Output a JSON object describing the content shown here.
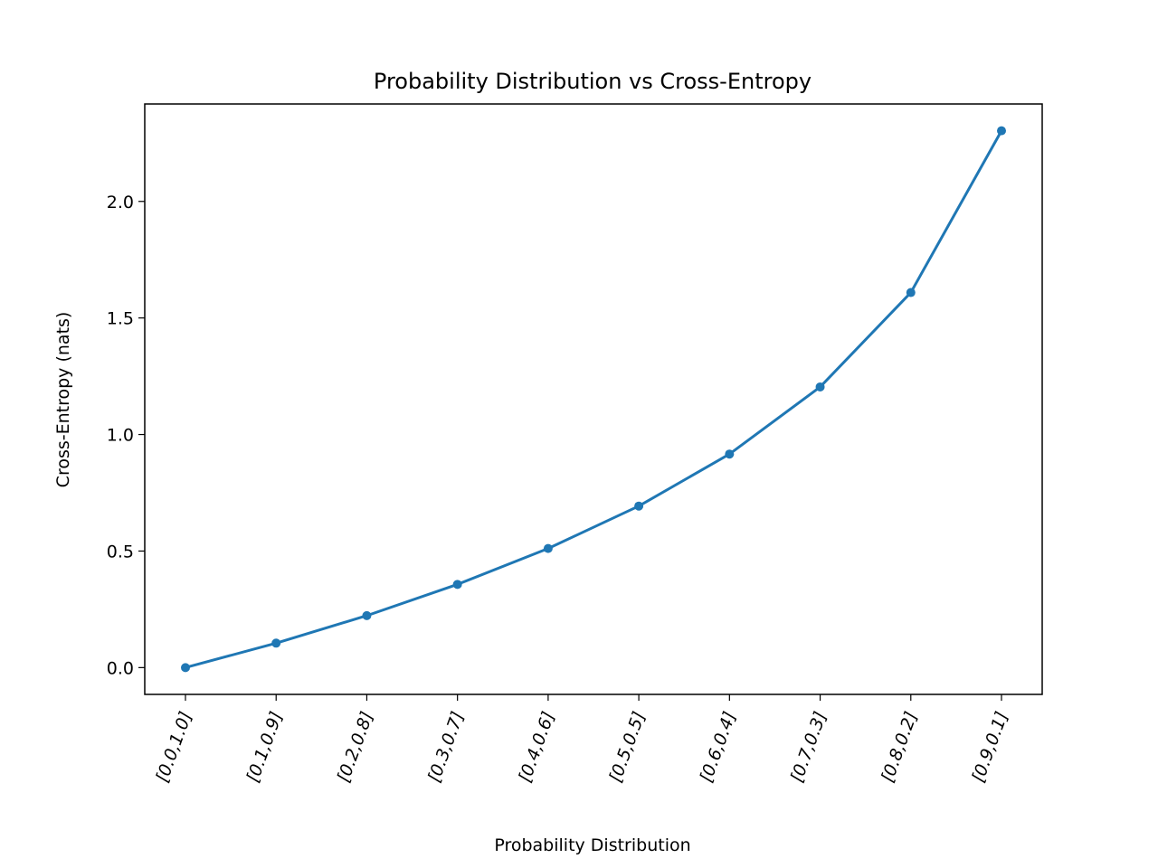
{
  "chart_data": {
    "type": "line",
    "title": "Probability Distribution vs Cross-Entropy",
    "xlabel": "Probability Distribution",
    "ylabel": "Cross-Entropy (nats)",
    "categories": [
      "[0.0,1.0]",
      "[0.1,0.9]",
      "[0.2,0.8]",
      "[0.3,0.7]",
      "[0.4,0.6]",
      "[0.5,0.5]",
      "[0.6,0.4]",
      "[0.7,0.3]",
      "[0.8,0.2]",
      "[0.9,0.1]"
    ],
    "series": [
      {
        "name": "Cross-Entropy",
        "values": [
          0.0,
          0.105,
          0.223,
          0.357,
          0.511,
          0.693,
          0.916,
          1.204,
          1.609,
          2.303
        ],
        "color": "#1f77b4"
      }
    ],
    "ylim": [
      -0.115,
      2.418
    ],
    "yticks": [
      0.0,
      0.5,
      1.0,
      1.5,
      2.0
    ],
    "ytick_labels": [
      "0.0",
      "0.5",
      "1.0",
      "1.5",
      "2.0"
    ],
    "grid": false
  }
}
